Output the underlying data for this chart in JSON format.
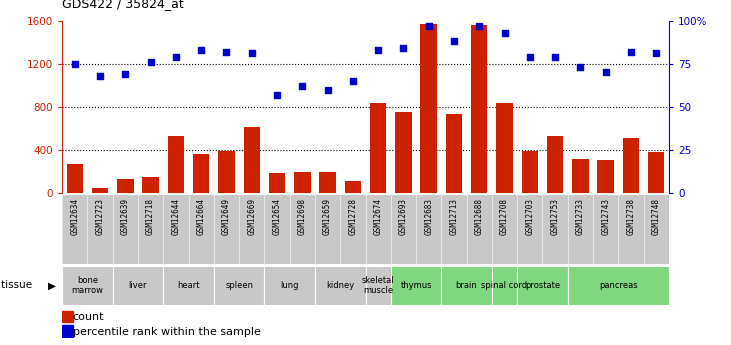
{
  "title": "GDS422 / 35824_at",
  "samples": [
    "GSM12634",
    "GSM12723",
    "GSM12639",
    "GSM12718",
    "GSM12644",
    "GSM12664",
    "GSM12649",
    "GSM12669",
    "GSM12654",
    "GSM12698",
    "GSM12659",
    "GSM12728",
    "GSM12674",
    "GSM12693",
    "GSM12683",
    "GSM12713",
    "GSM12688",
    "GSM12708",
    "GSM12703",
    "GSM12753",
    "GSM12733",
    "GSM12743",
    "GSM12738",
    "GSM12748"
  ],
  "counts": [
    270,
    50,
    130,
    150,
    530,
    365,
    390,
    610,
    190,
    200,
    195,
    110,
    840,
    750,
    1570,
    730,
    1560,
    840,
    395,
    530,
    315,
    305,
    510,
    380
  ],
  "percentiles": [
    75,
    68,
    69,
    76,
    79,
    83,
    82,
    81,
    57,
    62,
    60,
    65,
    83,
    84,
    97,
    88,
    97,
    93,
    79,
    79,
    73,
    70,
    82,
    81
  ],
  "tissues": [
    {
      "name": "bone\nmarrow",
      "start": 0,
      "end": 2,
      "color": "#c8c8c8"
    },
    {
      "name": "liver",
      "start": 2,
      "end": 4,
      "color": "#c8c8c8"
    },
    {
      "name": "heart",
      "start": 4,
      "end": 6,
      "color": "#c8c8c8"
    },
    {
      "name": "spleen",
      "start": 6,
      "end": 8,
      "color": "#c8c8c8"
    },
    {
      "name": "lung",
      "start": 8,
      "end": 10,
      "color": "#c8c8c8"
    },
    {
      "name": "kidney",
      "start": 10,
      "end": 12,
      "color": "#c8c8c8"
    },
    {
      "name": "skeletal\nmuscle",
      "start": 12,
      "end": 13,
      "color": "#c8c8c8"
    },
    {
      "name": "thymus",
      "start": 13,
      "end": 15,
      "color": "#7fd87f"
    },
    {
      "name": "brain",
      "start": 15,
      "end": 17,
      "color": "#7fd87f"
    },
    {
      "name": "spinal cord",
      "start": 17,
      "end": 18,
      "color": "#7fd87f"
    },
    {
      "name": "prostate",
      "start": 18,
      "end": 20,
      "color": "#7fd87f"
    },
    {
      "name": "pancreas",
      "start": 20,
      "end": 24,
      "color": "#7fd87f"
    }
  ],
  "bar_color": "#cc2200",
  "dot_color": "#0000cc",
  "ylim_left": [
    0,
    1600
  ],
  "ylim_right": [
    0,
    100
  ],
  "yticks_left": [
    0,
    400,
    800,
    1200,
    1600
  ],
  "yticks_right": [
    0,
    25,
    50,
    75,
    100
  ],
  "ytick_labels_right": [
    "0",
    "25",
    "50",
    "75",
    "100%"
  ],
  "grid_values": [
    400,
    800,
    1200
  ],
  "sample_bg_color": "#c8c8c8"
}
